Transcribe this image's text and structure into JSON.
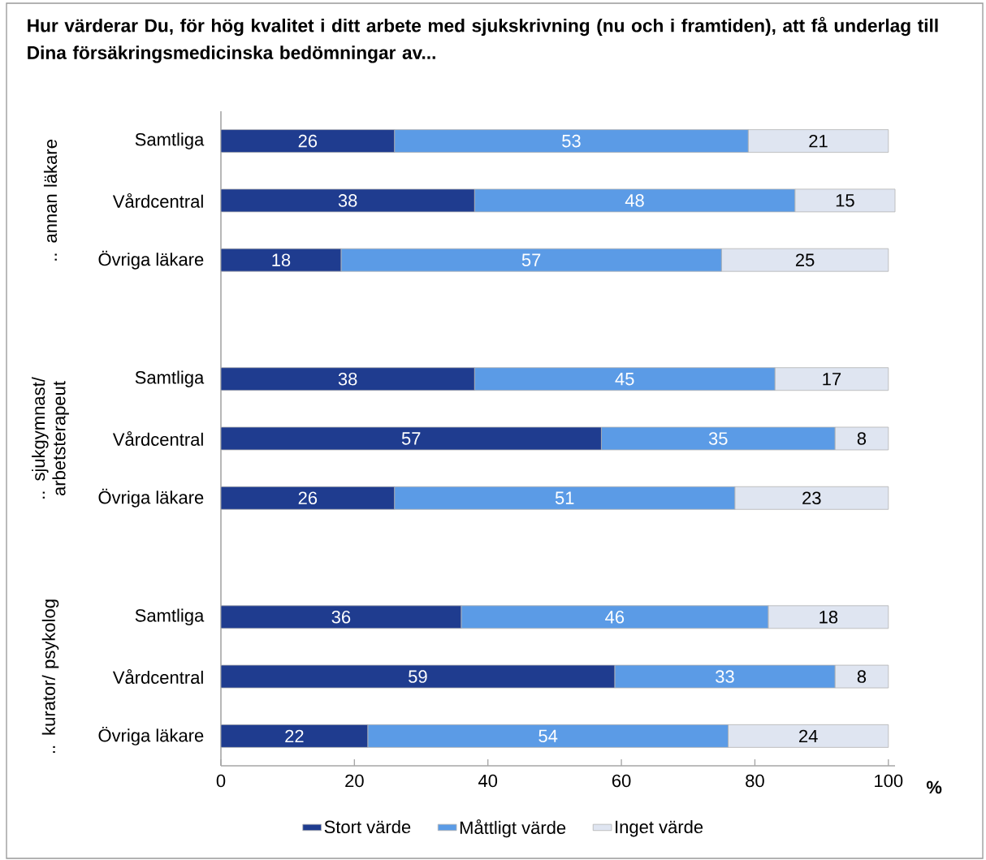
{
  "chart_data": {
    "type": "bar",
    "orientation": "horizontal",
    "stacked": true,
    "data_labels": true,
    "legend": "bottom",
    "title": "Hur värderar Du, för hög kvalitet i ditt arbete med sjukskrivning (nu och i framtiden), att få underlag till Dina försäkringsmedicinska bedömningar av...",
    "xlabel": "%",
    "xlim": [
      0,
      101
    ],
    "xticks": [
      0,
      20,
      40,
      60,
      80,
      100
    ],
    "categories": [
      "Samtliga",
      "Vårdcentral",
      "Övriga läkare",
      null,
      "Samtliga",
      "Vårdcentral",
      "Övriga läkare",
      null,
      "Samtliga",
      "Vårdcentral",
      "Övriga läkare"
    ],
    "annotations": [
      ".. annan läkare",
      ".. sjukgymnast/ arbetsterapeut",
      ".. kurator/ psykolog"
    ],
    "series": [
      {
        "name": "Stort värde",
        "color": "#1f3c8f",
        "values": [
          26,
          38,
          18,
          null,
          38,
          57,
          26,
          null,
          36,
          59,
          22
        ]
      },
      {
        "name": "Måttligt värde",
        "color": "#5b9be6",
        "values": [
          53,
          48,
          57,
          null,
          45,
          35,
          51,
          null,
          46,
          33,
          54
        ]
      },
      {
        "name": "Inget värde",
        "color": "#dfe5f1",
        "values": [
          21,
          15,
          25,
          null,
          17,
          8,
          23,
          null,
          18,
          8,
          24
        ]
      }
    ]
  }
}
